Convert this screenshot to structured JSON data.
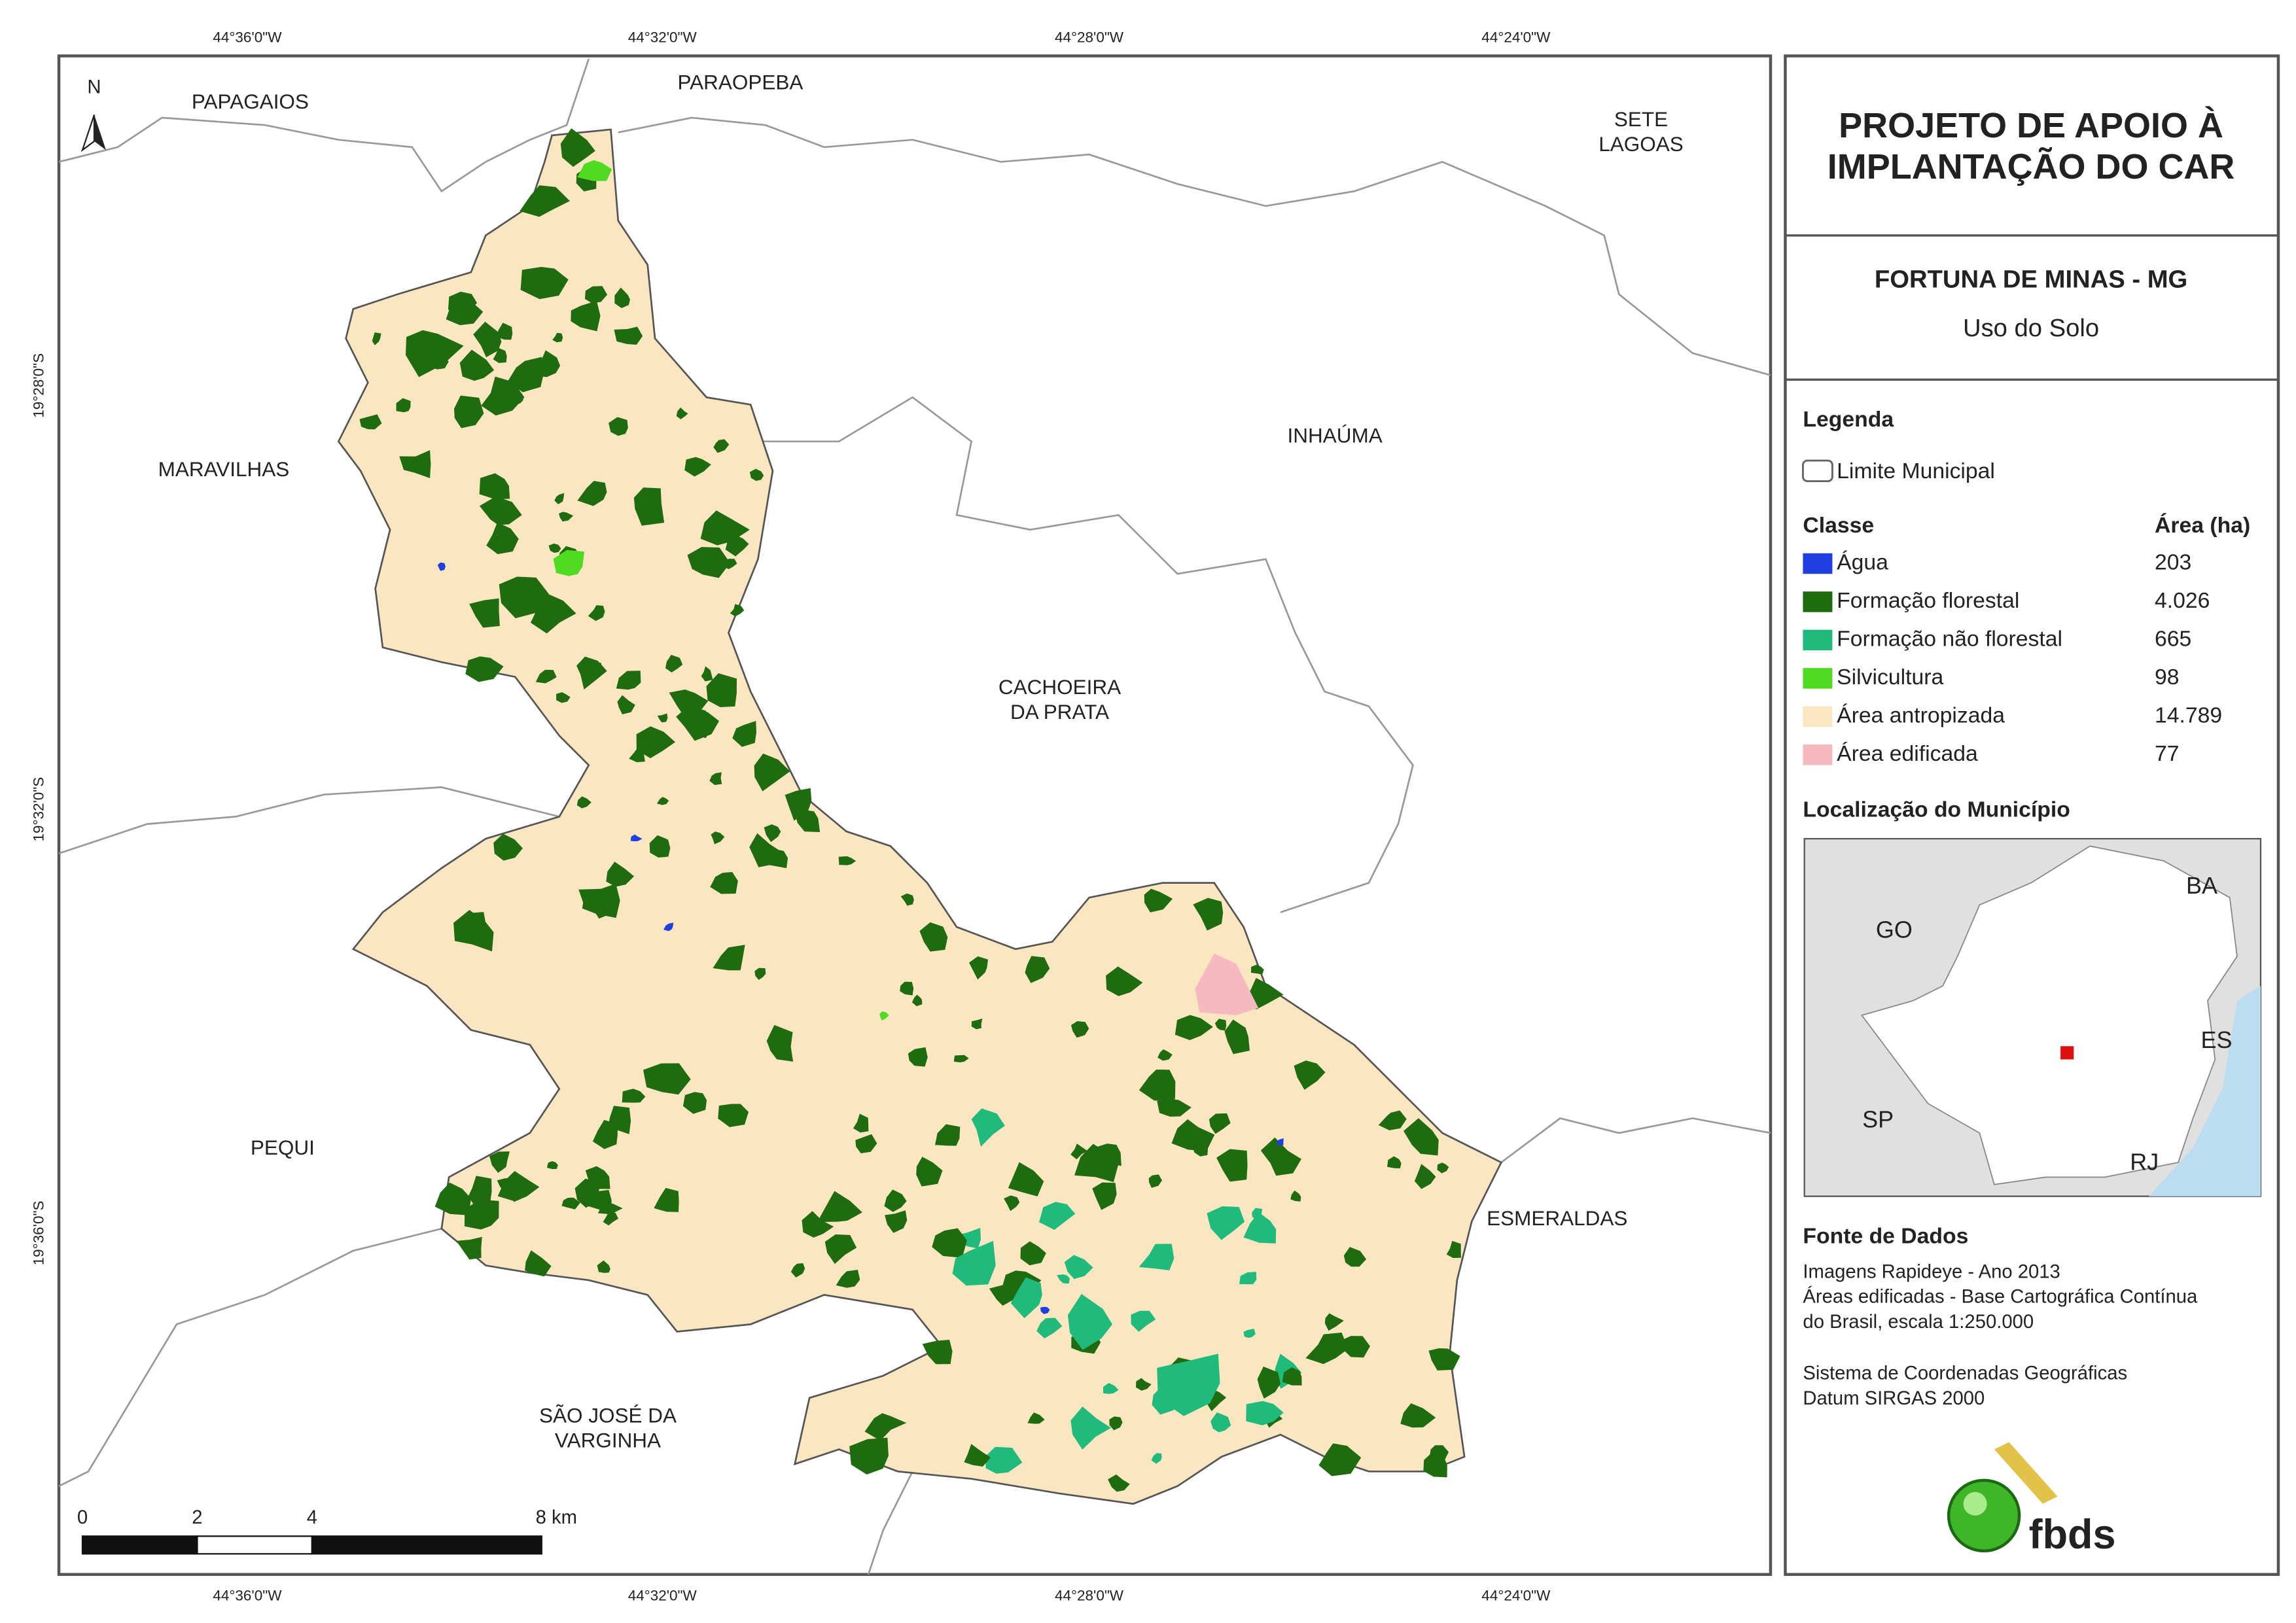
{
  "map": {
    "coord_labels": {
      "top": [
        "44°36'0\"W",
        "44°32'0\"W",
        "44°28'0\"W",
        "44°24'0\"W"
      ],
      "bottom": [
        "44°36'0\"W",
        "44°32'0\"W",
        "44°28'0\"W",
        "44°24'0\"W"
      ],
      "left": [
        "19°28'0\"S",
        "19°32'0\"S",
        "19°36'0\"S"
      ]
    },
    "north": "N",
    "places": [
      {
        "lines": [
          "PAPAGAIOS"
        ]
      },
      {
        "lines": [
          "PARAOPEBA"
        ]
      },
      {
        "lines": [
          "SETE",
          "LAGOAS"
        ]
      },
      {
        "lines": [
          "MARAVILHAS"
        ]
      },
      {
        "lines": [
          "INHAÚMA"
        ]
      },
      {
        "lines": [
          "CACHOEIRA",
          "DA PRATA"
        ]
      },
      {
        "lines": [
          "PEQUI"
        ]
      },
      {
        "lines": [
          "ESMERALDAS"
        ]
      },
      {
        "lines": [
          "SÃO JOSÉ DA",
          "VARGINHA"
        ]
      }
    ],
    "scale_labels": [
      "0",
      "2",
      "4",
      "8 km"
    ]
  },
  "panel": {
    "title": [
      "PROJETO DE APOIO À",
      "IMPLANTAÇÃO DO CAR"
    ],
    "municipality": "FORTUNA DE MINAS - MG",
    "theme": "Uso do Solo",
    "legend_title": "Legenda",
    "boundary_label": "Limite Municipal",
    "class_header": "Classe",
    "area_header": "Área (ha)",
    "classes": [
      {
        "name": "Água",
        "area": "203",
        "color": "#1f3fe0"
      },
      {
        "name": "Formação florestal",
        "area": "4.026",
        "color": "#1f6b0f"
      },
      {
        "name": "Formação não florestal",
        "area": "665",
        "color": "#1fba7c"
      },
      {
        "name": "Silvicultura",
        "area": "98",
        "color": "#4fdb1f"
      },
      {
        "name": "Área antropizada",
        "area": "14.789",
        "color": "#fbe6c2"
      },
      {
        "name": "Área edificada",
        "area": "77",
        "color": "#f7b9c0"
      }
    ],
    "location_title": "Localização do Município",
    "location_labels": [
      "GO",
      "BA",
      "ES",
      "SP",
      "RJ"
    ],
    "source_title": "Fonte de Dados",
    "source_lines": [
      "Imagens Rapideye - Ano 2013",
      "Áreas edificadas - Base Cartográfica Contínua",
      "do Brasil, escala 1:250.000"
    ],
    "reference_lines": [
      "Sistema de Coordenadas Geográficas",
      "Datum SIRGAS 2000"
    ],
    "logo": "fbds"
  }
}
